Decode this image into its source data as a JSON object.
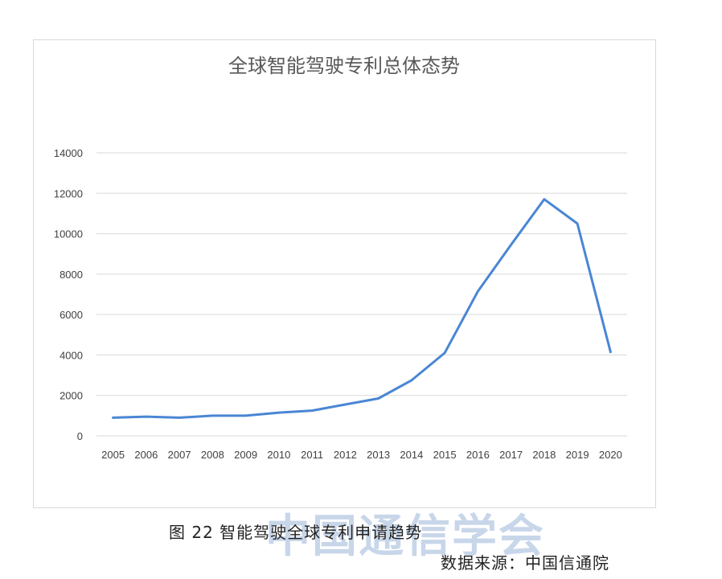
{
  "chart_data": {
    "type": "line",
    "title": "全球智能驾驶专利总体态势",
    "categories": [
      "2005",
      "2006",
      "2007",
      "2008",
      "2009",
      "2010",
      "2011",
      "2012",
      "2013",
      "2014",
      "2015",
      "2016",
      "2017",
      "2018",
      "2019",
      "2020"
    ],
    "series": [
      {
        "values": [
          900,
          950,
          900,
          1000,
          1000,
          1150,
          1250,
          1550,
          1850,
          2750,
          4100,
          7150,
          9450,
          11700,
          10500,
          4150
        ]
      }
    ],
    "ylim": [
      0,
      14000
    ],
    "yticks": [
      0,
      2000,
      4000,
      6000,
      8000,
      10000,
      12000,
      14000
    ],
    "grid": true,
    "line_color": "#4a86d4"
  },
  "caption": "图 22 智能驾驶全球专利申请趋势",
  "source": "数据来源：中国信通院",
  "watermark": "中国通信学会"
}
